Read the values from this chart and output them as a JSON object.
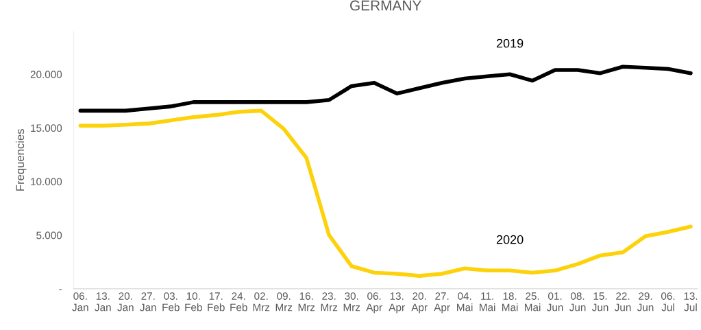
{
  "chart_data": {
    "type": "line",
    "title": "GERMANY",
    "ylabel": "Frequencies",
    "categories": [
      "06.\nJan",
      "13.\nJan",
      "20.\nJan",
      "27.\nJan",
      "03.\nFeb",
      "10.\nFeb",
      "17.\nFeb",
      "24.\nFeb",
      "02.\nMrz",
      "09.\nMrz",
      "16.\nMrz",
      "23.\nMrz",
      "30.\nMrz",
      "06.\nApr",
      "13.\nApr",
      "20.\nApr",
      "27.\nApr",
      "04.\nMai",
      "11.\nMai",
      "18.\nMai",
      "25.\nMai",
      "01.\nJun",
      "08.\nJun",
      "15.\nJun",
      "22.\nJun",
      "29.\nJun",
      "06.\nJul",
      "13.\nJul"
    ],
    "series": [
      {
        "name": "2019",
        "color": "#000000",
        "values": [
          16600,
          16600,
          16600,
          16800,
          17000,
          17400,
          17400,
          17400,
          17400,
          17400,
          17400,
          17600,
          18900,
          19200,
          18200,
          18700,
          19200,
          19600,
          19800,
          20000,
          19400,
          20400,
          20400,
          20100,
          20700,
          20600,
          20500,
          20100
        ]
      },
      {
        "name": "2020",
        "color": "#fdd20a",
        "values": [
          15200,
          15200,
          15300,
          15400,
          15700,
          16000,
          16200,
          16500,
          16600,
          14900,
          12200,
          5000,
          2100,
          1500,
          1400,
          1200,
          1400,
          1900,
          1700,
          1700,
          1500,
          1700,
          2300,
          3100,
          3400,
          4900,
          5300,
          5800
        ]
      }
    ],
    "yticks": [
      {
        "value": 0,
        "label": "-"
      },
      {
        "value": 5000,
        "label": "5.000"
      },
      {
        "value": 10000,
        "label": "10.000"
      },
      {
        "value": 15000,
        "label": "15.000"
      },
      {
        "value": 20000,
        "label": "20.000"
      }
    ],
    "ylim": [
      0,
      24000
    ],
    "grid": false,
    "legend": false
  }
}
